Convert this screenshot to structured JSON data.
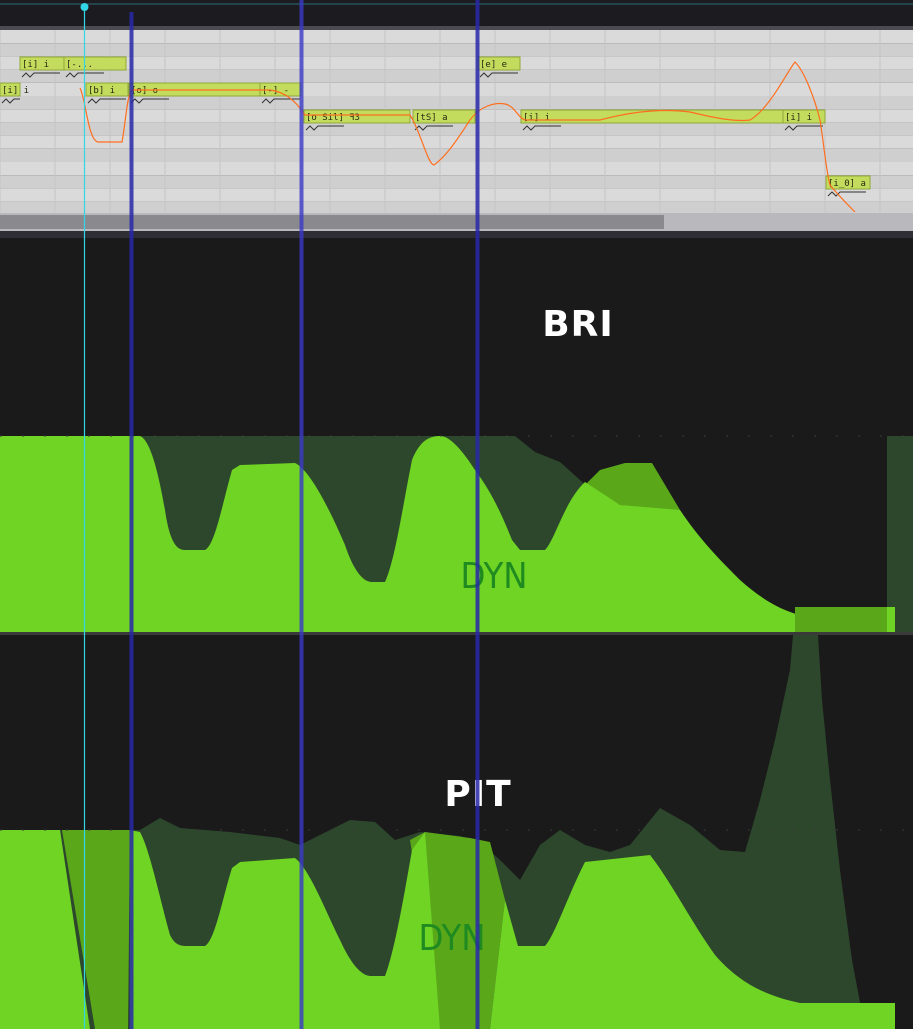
{
  "piano_roll": {
    "notes": [
      {
        "id": "n1",
        "label": "[i] i"
      },
      {
        "id": "n2",
        "label": "[i] i"
      },
      {
        "id": "n3",
        "label": "[-..."
      },
      {
        "id": "n4",
        "label": "[b] i"
      },
      {
        "id": "n5",
        "label": "[o] o"
      },
      {
        "id": "n6",
        "label": "[-] -"
      },
      {
        "id": "n7",
        "label": "[o Sil] ꟻ3"
      },
      {
        "id": "n8",
        "label": "[tS] a"
      },
      {
        "id": "n9",
        "label": "[e] e"
      },
      {
        "id": "n10",
        "label": "[i] i"
      },
      {
        "id": "n11",
        "label": "[i] i"
      },
      {
        "id": "n12",
        "label": "[i_0] a"
      }
    ]
  },
  "lanes": [
    {
      "id": "bri",
      "title": "BRI",
      "subtitle": "DYN"
    },
    {
      "id": "pit",
      "title": "PIT",
      "subtitle": "DYN"
    }
  ],
  "colors": {
    "background": "#1a1a1a",
    "curve_bright": "#6fd424",
    "curve_dim": "#2d472c",
    "curve_mid": "#5aa81a",
    "note_fill": "#c3dc5e",
    "pitch_line": "#ff6e1e",
    "playhead": "#33d6e6",
    "marker": "#2828aa"
  }
}
